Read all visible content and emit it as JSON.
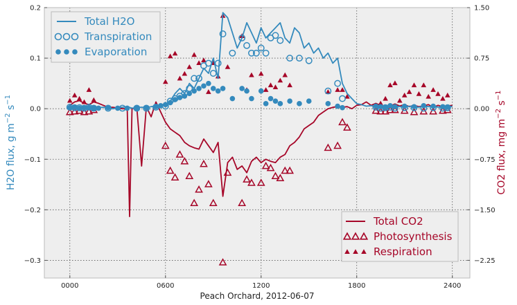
{
  "colors": {
    "h2o": "#348ABD",
    "co2": "#A60628",
    "plot_bg": "#EEEEEE",
    "grid": "#555555",
    "axis_text": "#222222"
  },
  "chart_data": {
    "type": "line",
    "xlabel": "Peach Orchard, 2012-06-07",
    "ylabel_left": "H2O flux, g m-2 s-1",
    "ylabel_right": "CO2 flux, mg m-2 s-1",
    "xlim": [
      -160,
      2510
    ],
    "ylim_left": [
      -0.335,
      0.2
    ],
    "ylim_right": [
      -2.5125,
      1.5
    ],
    "xticks": [
      0,
      600,
      1200,
      1800,
      2400
    ],
    "xtick_labels": [
      "0000",
      "0600",
      "1200",
      "1800",
      "2400"
    ],
    "yticks_left": [
      -0.3,
      -0.2,
      -0.1,
      0.0,
      0.1,
      0.2
    ],
    "ytick_labels_left": [
      "−0.3",
      "−0.2",
      "−0.1",
      "0.0",
      "0.1",
      "0.2"
    ],
    "yticks_right": [
      -2.25,
      -1.5,
      -0.75,
      0.0,
      0.75,
      1.5
    ],
    "ytick_labels_right": [
      "−2.25",
      "−1.50",
      "−0.75",
      "0.00",
      "0.75",
      "1.50"
    ],
    "grid": true,
    "legend_left": [
      "Total H2O",
      "Transpiration",
      "Evaporation"
    ],
    "legend_right": [
      "Total CO2",
      "Photosynthesis",
      "Respiration"
    ],
    "series": [
      {
        "name": "Total H2O",
        "axis": "left",
        "style": "line",
        "x": [
          0,
          30,
          60,
          90,
          120,
          150,
          180,
          210,
          240,
          270,
          300,
          330,
          360,
          390,
          420,
          450,
          480,
          510,
          540,
          570,
          600,
          630,
          660,
          690,
          720,
          750,
          780,
          810,
          840,
          870,
          900,
          930,
          960,
          990,
          1020,
          1050,
          1080,
          1110,
          1140,
          1170,
          1200,
          1230,
          1260,
          1290,
          1320,
          1350,
          1380,
          1410,
          1440,
          1470,
          1500,
          1530,
          1560,
          1590,
          1620,
          1650,
          1680,
          1710,
          1740,
          1770,
          1800,
          1830,
          1860,
          1890,
          1920,
          1950,
          1980,
          2010,
          2040,
          2070,
          2100,
          2130,
          2160,
          2190,
          2220,
          2250,
          2280,
          2310,
          2340,
          2370,
          2400
        ],
        "y": [
          0.002,
          0.004,
          0.003,
          0.001,
          0.003,
          0.005,
          0.002,
          0.003,
          0.001,
          0.0,
          0.002,
          0.003,
          0.004,
          0.001,
          0.002,
          0.003,
          0.002,
          0.004,
          0.005,
          0.006,
          0.008,
          0.015,
          0.03,
          0.04,
          0.03,
          0.05,
          0.04,
          0.06,
          0.08,
          0.07,
          0.1,
          0.06,
          0.19,
          0.18,
          0.15,
          0.12,
          0.14,
          0.17,
          0.15,
          0.13,
          0.16,
          0.14,
          0.15,
          0.16,
          0.17,
          0.14,
          0.13,
          0.16,
          0.15,
          0.12,
          0.13,
          0.11,
          0.12,
          0.1,
          0.11,
          0.09,
          0.1,
          0.05,
          0.03,
          0.02,
          0.01,
          0.008,
          0.005,
          0.006,
          0.004,
          0.005,
          0.004,
          0.006,
          0.005,
          0.004,
          0.003,
          0.005,
          0.004,
          0.003,
          0.005,
          0.004,
          0.006,
          0.003,
          0.004,
          0.005,
          0.004
        ]
      },
      {
        "name": "Transpiration",
        "axis": "left",
        "style": "open-circle",
        "x": [
          0,
          30,
          60,
          90,
          120,
          150,
          240,
          330,
          420,
          480,
          540,
          600,
          630,
          660,
          690,
          720,
          750,
          780,
          810,
          840,
          870,
          900,
          930,
          960,
          1020,
          1080,
          1110,
          1140,
          1170,
          1200,
          1230,
          1260,
          1290,
          1320,
          1380,
          1440,
          1500,
          1620,
          1680,
          1710,
          1920,
          1950,
          1980,
          2010,
          2040,
          2100,
          2160,
          2220,
          2280,
          2340,
          2370
        ],
        "y": [
          0.003,
          0.002,
          0.002,
          0.001,
          0.003,
          0.001,
          0.001,
          0.001,
          0.001,
          0.001,
          0.003,
          0.005,
          0.015,
          0.02,
          0.025,
          0.03,
          0.04,
          0.06,
          0.06,
          0.085,
          0.09,
          0.07,
          0.09,
          0.148,
          0.11,
          0.14,
          0.125,
          0.11,
          0.11,
          0.12,
          0.11,
          0.14,
          0.145,
          0.135,
          0.1,
          0.1,
          0.095,
          0.035,
          0.05,
          0.02,
          0.003,
          0.001,
          0.002,
          0.003,
          0.001,
          0.002,
          0.002,
          0.001,
          0.002,
          0.001,
          0.002
        ]
      },
      {
        "name": "Evaporation",
        "axis": "left",
        "style": "filled-circle",
        "x": [
          0,
          30,
          60,
          90,
          120,
          150,
          180,
          240,
          300,
          360,
          420,
          480,
          540,
          570,
          600,
          630,
          660,
          690,
          720,
          750,
          780,
          810,
          840,
          870,
          900,
          930,
          960,
          1020,
          1080,
          1110,
          1140,
          1200,
          1230,
          1260,
          1290,
          1320,
          1380,
          1440,
          1500,
          1620,
          1680,
          1710,
          1920,
          1950,
          1980,
          2010,
          2040,
          2100,
          2160,
          2220,
          2280,
          2340,
          2370
        ],
        "y": [
          0.002,
          0.003,
          0.001,
          0.002,
          0.002,
          0.001,
          0.001,
          0.002,
          0.001,
          0.001,
          0.001,
          0.002,
          0.004,
          0.006,
          0.008,
          0.012,
          0.018,
          0.022,
          0.025,
          0.03,
          0.035,
          0.04,
          0.045,
          0.05,
          0.04,
          0.035,
          0.04,
          0.02,
          0.04,
          0.035,
          0.02,
          0.035,
          0.01,
          0.02,
          0.015,
          0.01,
          0.015,
          0.01,
          0.015,
          0.01,
          0.005,
          0.002,
          0.005,
          0.004,
          0.003,
          0.006,
          0.004,
          0.005,
          0.004,
          0.006,
          0.005,
          0.004,
          0.003
        ]
      },
      {
        "name": "Total CO2",
        "axis": "right",
        "style": "line",
        "x": [
          0,
          30,
          60,
          90,
          120,
          150,
          180,
          210,
          240,
          270,
          300,
          330,
          360,
          375,
          390,
          420,
          450,
          480,
          510,
          540,
          570,
          600,
          630,
          660,
          690,
          720,
          750,
          780,
          810,
          840,
          870,
          900,
          930,
          960,
          990,
          1020,
          1050,
          1080,
          1110,
          1140,
          1170,
          1200,
          1230,
          1260,
          1290,
          1320,
          1350,
          1380,
          1410,
          1440,
          1470,
          1500,
          1530,
          1560,
          1590,
          1620,
          1650,
          1680,
          1710,
          1740,
          1770,
          1800,
          1830,
          1860,
          1890,
          1920,
          1950,
          1980,
          2010,
          2040,
          2070,
          2100,
          2130,
          2160,
          2190,
          2220,
          2250,
          2280,
          2310,
          2340,
          2370,
          2400
        ],
        "y": [
          0.05,
          0.1,
          0.12,
          0.08,
          0.06,
          0.1,
          0.08,
          0.05,
          0.02,
          0.02,
          0.01,
          0.0,
          0.0,
          -1.6,
          0.0,
          0.02,
          -0.85,
          0.03,
          -0.12,
          0.1,
          -0.05,
          -0.2,
          -0.3,
          -0.35,
          -0.4,
          -0.5,
          -0.55,
          -0.58,
          -0.6,
          -0.45,
          -0.55,
          -0.65,
          -0.5,
          -1.3,
          -0.8,
          -0.72,
          -0.9,
          -0.85,
          -0.95,
          -0.78,
          -0.72,
          -0.8,
          -0.75,
          -0.78,
          -0.8,
          -0.72,
          -0.68,
          -0.55,
          -0.5,
          -0.42,
          -0.3,
          -0.25,
          -0.2,
          -0.1,
          -0.05,
          0.0,
          0.02,
          0.03,
          0.02,
          0.03,
          0.0,
          0.05,
          0.06,
          0.1,
          0.05,
          0.08,
          0.05,
          0.03,
          0.04,
          0.07,
          0.04,
          0.06,
          0.03,
          0.05,
          0.03,
          0.04,
          0.06,
          0.02,
          0.05,
          0.03,
          0.04,
          0.05
        ]
      },
      {
        "name": "Photosynthesis",
        "axis": "right",
        "style": "open-triangle",
        "x": [
          0,
          30,
          60,
          90,
          120,
          150,
          600,
          630,
          660,
          690,
          720,
          750,
          780,
          810,
          840,
          870,
          900,
          960,
          990,
          1080,
          1110,
          1140,
          1200,
          1230,
          1260,
          1290,
          1320,
          1350,
          1380,
          1620,
          1680,
          1710,
          1740,
          1920,
          1950,
          1980,
          2010,
          2040,
          2100,
          2160,
          2220,
          2280,
          2340,
          2370
        ],
        "y": [
          -0.05,
          -0.04,
          -0.03,
          -0.05,
          -0.04,
          -0.02,
          -0.55,
          -0.92,
          -1.02,
          -0.68,
          -0.78,
          -1.0,
          -1.4,
          -1.2,
          -0.82,
          -1.12,
          -1.4,
          -2.28,
          -0.95,
          -1.4,
          -1.05,
          -1.1,
          -1.1,
          -0.85,
          -0.88,
          -1.0,
          -1.03,
          -0.92,
          -0.92,
          -0.58,
          -0.55,
          -0.2,
          -0.28,
          -0.03,
          -0.04,
          -0.04,
          -0.02,
          -0.02,
          -0.03,
          -0.05,
          -0.04,
          -0.04,
          -0.03,
          -0.02
        ]
      },
      {
        "name": "Respiration",
        "axis": "right",
        "style": "filled-triangle",
        "x": [
          0,
          30,
          60,
          90,
          120,
          150,
          600,
          630,
          660,
          690,
          720,
          750,
          780,
          810,
          840,
          870,
          900,
          930,
          960,
          990,
          1080,
          1110,
          1140,
          1200,
          1230,
          1260,
          1290,
          1320,
          1350,
          1380,
          1620,
          1680,
          1710,
          1740,
          1920,
          1950,
          1980,
          2010,
          2040,
          2070,
          2100,
          2130,
          2160,
          2190,
          2220,
          2250,
          2280,
          2310,
          2340,
          2370
        ],
        "y": [
          0.12,
          0.2,
          0.15,
          0.1,
          0.28,
          0.13,
          0.4,
          0.78,
          0.82,
          0.45,
          0.52,
          0.62,
          0.8,
          0.68,
          0.72,
          0.25,
          0.68,
          0.48,
          1.38,
          0.62,
          1.08,
          0.28,
          0.5,
          0.52,
          0.28,
          0.35,
          0.32,
          0.42,
          0.5,
          0.35,
          0.25,
          0.28,
          0.28,
          0.18,
          0.05,
          0.08,
          0.15,
          0.35,
          0.38,
          0.12,
          0.2,
          0.25,
          0.35,
          0.22,
          0.35,
          0.18,
          0.28,
          0.22,
          0.15,
          0.2
        ]
      }
    ]
  }
}
